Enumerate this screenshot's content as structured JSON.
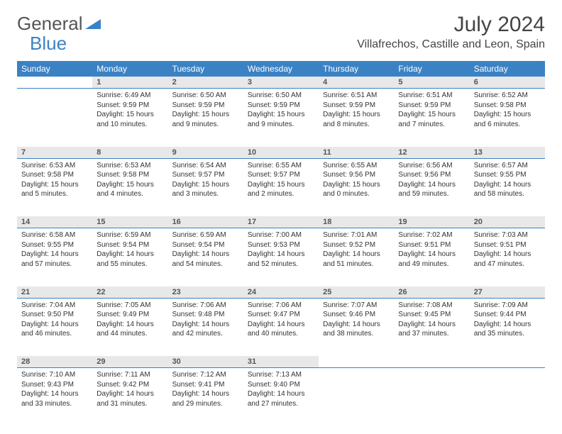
{
  "logo": {
    "text1": "General",
    "text2": "Blue"
  },
  "title": "July 2024",
  "location": "Villafrechos, Castille and Leon, Spain",
  "weekdays": [
    "Sunday",
    "Monday",
    "Tuesday",
    "Wednesday",
    "Thursday",
    "Friday",
    "Saturday"
  ],
  "colors": {
    "header_bg": "#3b82c4",
    "header_text": "#ffffff",
    "daynum_bg": "#e8e8e8",
    "border": "#3b82c4"
  },
  "weeks": [
    {
      "nums": [
        "",
        "1",
        "2",
        "3",
        "4",
        "5",
        "6"
      ],
      "cells": [
        null,
        {
          "sr": "Sunrise: 6:49 AM",
          "ss": "Sunset: 9:59 PM",
          "dl": "Daylight: 15 hours and 10 minutes."
        },
        {
          "sr": "Sunrise: 6:50 AM",
          "ss": "Sunset: 9:59 PM",
          "dl": "Daylight: 15 hours and 9 minutes."
        },
        {
          "sr": "Sunrise: 6:50 AM",
          "ss": "Sunset: 9:59 PM",
          "dl": "Daylight: 15 hours and 9 minutes."
        },
        {
          "sr": "Sunrise: 6:51 AM",
          "ss": "Sunset: 9:59 PM",
          "dl": "Daylight: 15 hours and 8 minutes."
        },
        {
          "sr": "Sunrise: 6:51 AM",
          "ss": "Sunset: 9:59 PM",
          "dl": "Daylight: 15 hours and 7 minutes."
        },
        {
          "sr": "Sunrise: 6:52 AM",
          "ss": "Sunset: 9:58 PM",
          "dl": "Daylight: 15 hours and 6 minutes."
        }
      ]
    },
    {
      "nums": [
        "7",
        "8",
        "9",
        "10",
        "11",
        "12",
        "13"
      ],
      "cells": [
        {
          "sr": "Sunrise: 6:53 AM",
          "ss": "Sunset: 9:58 PM",
          "dl": "Daylight: 15 hours and 5 minutes."
        },
        {
          "sr": "Sunrise: 6:53 AM",
          "ss": "Sunset: 9:58 PM",
          "dl": "Daylight: 15 hours and 4 minutes."
        },
        {
          "sr": "Sunrise: 6:54 AM",
          "ss": "Sunset: 9:57 PM",
          "dl": "Daylight: 15 hours and 3 minutes."
        },
        {
          "sr": "Sunrise: 6:55 AM",
          "ss": "Sunset: 9:57 PM",
          "dl": "Daylight: 15 hours and 2 minutes."
        },
        {
          "sr": "Sunrise: 6:55 AM",
          "ss": "Sunset: 9:56 PM",
          "dl": "Daylight: 15 hours and 0 minutes."
        },
        {
          "sr": "Sunrise: 6:56 AM",
          "ss": "Sunset: 9:56 PM",
          "dl": "Daylight: 14 hours and 59 minutes."
        },
        {
          "sr": "Sunrise: 6:57 AM",
          "ss": "Sunset: 9:55 PM",
          "dl": "Daylight: 14 hours and 58 minutes."
        }
      ]
    },
    {
      "nums": [
        "14",
        "15",
        "16",
        "17",
        "18",
        "19",
        "20"
      ],
      "cells": [
        {
          "sr": "Sunrise: 6:58 AM",
          "ss": "Sunset: 9:55 PM",
          "dl": "Daylight: 14 hours and 57 minutes."
        },
        {
          "sr": "Sunrise: 6:59 AM",
          "ss": "Sunset: 9:54 PM",
          "dl": "Daylight: 14 hours and 55 minutes."
        },
        {
          "sr": "Sunrise: 6:59 AM",
          "ss": "Sunset: 9:54 PM",
          "dl": "Daylight: 14 hours and 54 minutes."
        },
        {
          "sr": "Sunrise: 7:00 AM",
          "ss": "Sunset: 9:53 PM",
          "dl": "Daylight: 14 hours and 52 minutes."
        },
        {
          "sr": "Sunrise: 7:01 AM",
          "ss": "Sunset: 9:52 PM",
          "dl": "Daylight: 14 hours and 51 minutes."
        },
        {
          "sr": "Sunrise: 7:02 AM",
          "ss": "Sunset: 9:51 PM",
          "dl": "Daylight: 14 hours and 49 minutes."
        },
        {
          "sr": "Sunrise: 7:03 AM",
          "ss": "Sunset: 9:51 PM",
          "dl": "Daylight: 14 hours and 47 minutes."
        }
      ]
    },
    {
      "nums": [
        "21",
        "22",
        "23",
        "24",
        "25",
        "26",
        "27"
      ],
      "cells": [
        {
          "sr": "Sunrise: 7:04 AM",
          "ss": "Sunset: 9:50 PM",
          "dl": "Daylight: 14 hours and 46 minutes."
        },
        {
          "sr": "Sunrise: 7:05 AM",
          "ss": "Sunset: 9:49 PM",
          "dl": "Daylight: 14 hours and 44 minutes."
        },
        {
          "sr": "Sunrise: 7:06 AM",
          "ss": "Sunset: 9:48 PM",
          "dl": "Daylight: 14 hours and 42 minutes."
        },
        {
          "sr": "Sunrise: 7:06 AM",
          "ss": "Sunset: 9:47 PM",
          "dl": "Daylight: 14 hours and 40 minutes."
        },
        {
          "sr": "Sunrise: 7:07 AM",
          "ss": "Sunset: 9:46 PM",
          "dl": "Daylight: 14 hours and 38 minutes."
        },
        {
          "sr": "Sunrise: 7:08 AM",
          "ss": "Sunset: 9:45 PM",
          "dl": "Daylight: 14 hours and 37 minutes."
        },
        {
          "sr": "Sunrise: 7:09 AM",
          "ss": "Sunset: 9:44 PM",
          "dl": "Daylight: 14 hours and 35 minutes."
        }
      ]
    },
    {
      "nums": [
        "28",
        "29",
        "30",
        "31",
        "",
        "",
        ""
      ],
      "cells": [
        {
          "sr": "Sunrise: 7:10 AM",
          "ss": "Sunset: 9:43 PM",
          "dl": "Daylight: 14 hours and 33 minutes."
        },
        {
          "sr": "Sunrise: 7:11 AM",
          "ss": "Sunset: 9:42 PM",
          "dl": "Daylight: 14 hours and 31 minutes."
        },
        {
          "sr": "Sunrise: 7:12 AM",
          "ss": "Sunset: 9:41 PM",
          "dl": "Daylight: 14 hours and 29 minutes."
        },
        {
          "sr": "Sunrise: 7:13 AM",
          "ss": "Sunset: 9:40 PM",
          "dl": "Daylight: 14 hours and 27 minutes."
        },
        null,
        null,
        null
      ]
    }
  ]
}
